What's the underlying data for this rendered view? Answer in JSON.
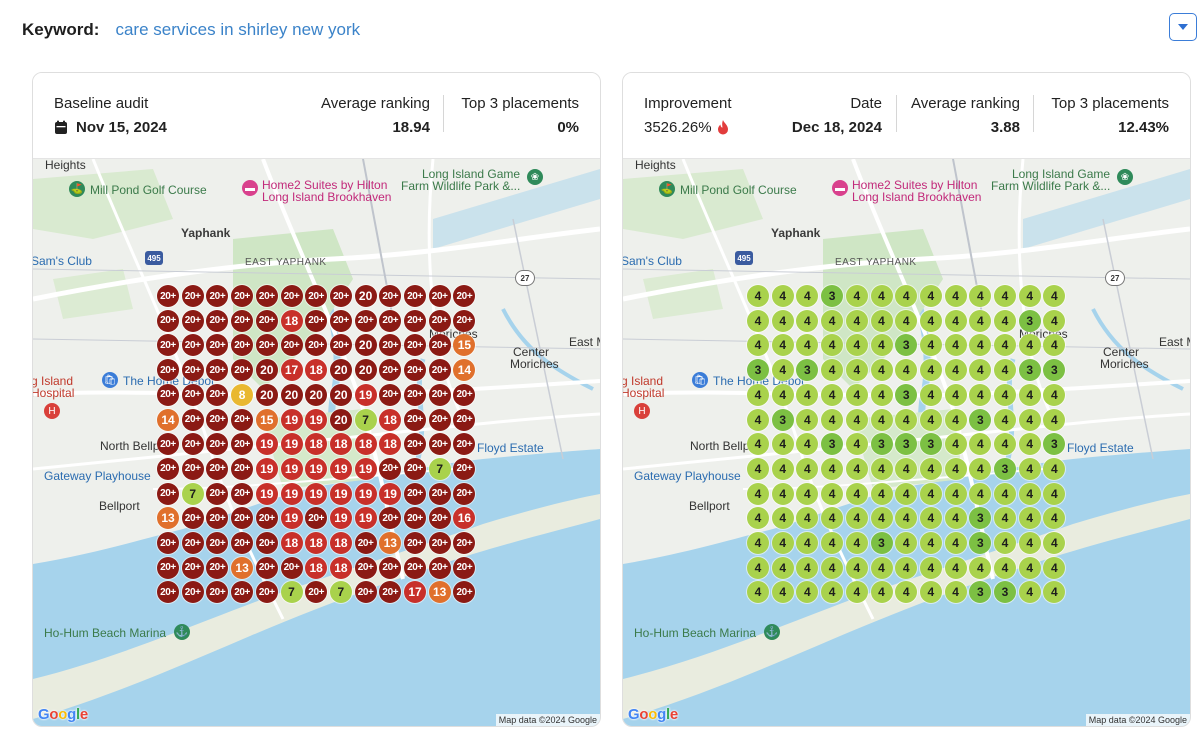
{
  "keyword": {
    "label": "Keyword:",
    "value": "care services in shirley new york"
  },
  "dropdown_icon": "chevron-down-icon",
  "colors": {
    "link": "#3b83c9",
    "rank_20_plus": "#8b1a14",
    "rank_16_19": "#c8302a",
    "rank_11_15": "#e0702c",
    "rank_8_10": "#e9b830",
    "rank_4_7": "#a9d24c",
    "rank_1_3": "#7cc043",
    "improvement_icon": "#e23c3c"
  },
  "baseline": {
    "title": "Baseline audit",
    "date": "Nov 15, 2024",
    "date_icon": "calendar-icon",
    "avg_label": "Average ranking",
    "avg_value": "18.94",
    "top3_label": "Top 3 placements",
    "top3_value": "0%"
  },
  "current": {
    "improvement_label": "Improvement",
    "improvement_value": "3526.26%",
    "improvement_icon": "flame-icon",
    "date_label": "Date",
    "date_value": "Dec 18, 2024",
    "avg_label": "Average ranking",
    "avg_value": "3.88",
    "top3_label": "Top 3 placements",
    "top3_value": "12.43%"
  },
  "map_labels": {
    "heights": "Heights",
    "mill_pond": "Mill Pond Golf Course",
    "home2_line1": "Home2 Suites by Hilton",
    "home2_line2": "Long Island Brookhaven",
    "game_farm_line1": "Long Island Game",
    "game_farm_line2": "Farm Wildlife Park &...",
    "yaphank": "Yaphank",
    "sams_club": "Sam's Club",
    "east_yaphank": "EAST YAPHANK",
    "route_495": "495",
    "route_27": "27",
    "moriches": "Moriches",
    "east_m": "East M",
    "center_moriches_1": "Center",
    "center_moriches_2": "Moriches",
    "li_hospital_1": "g Island",
    "li_hospital_2": "Hospital",
    "home_depot": "The Home Depot",
    "north_bellport": "North Bellp",
    "floyd_estate": "Floyd Estate",
    "gateway": "Gateway Playhouse",
    "bellport": "Bellport",
    "ho_hum": "Ho-Hum Beach Marina",
    "map_data": "Map data ©2024 Google",
    "google": "Google"
  },
  "baseline_grid": [
    [
      "20+",
      "20+",
      "20+",
      "20+",
      "20+",
      "20+",
      "20+",
      "20+",
      "20",
      "20+",
      "20+",
      "20+",
      "20+"
    ],
    [
      "20+",
      "20+",
      "20+",
      "20+",
      "20+",
      "18",
      "20+",
      "20+",
      "20+",
      "20+",
      "20+",
      "20+",
      "20+"
    ],
    [
      "20+",
      "20+",
      "20+",
      "20+",
      "20+",
      "20+",
      "20+",
      "20+",
      "20",
      "20+",
      "20+",
      "20+",
      "15"
    ],
    [
      "20+",
      "20+",
      "20+",
      "20+",
      "20",
      "17",
      "18",
      "20",
      "20",
      "20+",
      "20+",
      "20+",
      "14"
    ],
    [
      "20+",
      "20+",
      "20+",
      "8",
      "20",
      "20",
      "20",
      "20",
      "19",
      "20+",
      "20+",
      "20+",
      "20+"
    ],
    [
      "14",
      "20+",
      "20+",
      "20+",
      "15",
      "19",
      "19",
      "20",
      "7",
      "18",
      "20+",
      "20+",
      "20+"
    ],
    [
      "20+",
      "20+",
      "20+",
      "20+",
      "19",
      "19",
      "18",
      "18",
      "18",
      "18",
      "20+",
      "20+",
      "20+"
    ],
    [
      "20+",
      "20+",
      "20+",
      "20+",
      "19",
      "19",
      "19",
      "19",
      "19",
      "20+",
      "20+",
      "7",
      "20+"
    ],
    [
      "20+",
      "7",
      "20+",
      "20+",
      "19",
      "19",
      "19",
      "19",
      "19",
      "19",
      "20+",
      "20+",
      "20+"
    ],
    [
      "13",
      "20+",
      "20+",
      "20+",
      "20+",
      "19",
      "20+",
      "19",
      "19",
      "20+",
      "20+",
      "20+",
      "16"
    ],
    [
      "20+",
      "20+",
      "20+",
      "20+",
      "20+",
      "18",
      "18",
      "18",
      "20+",
      "13",
      "20+",
      "20+",
      "20+"
    ],
    [
      "20+",
      "20+",
      "20+",
      "13",
      "20+",
      "20+",
      "18",
      "18",
      "20+",
      "20+",
      "20+",
      "20+",
      "20+"
    ],
    [
      "20+",
      "20+",
      "20+",
      "20+",
      "20+",
      "7",
      "20+",
      "7",
      "20+",
      "20+",
      "17",
      "13",
      "20+"
    ]
  ],
  "current_grid": [
    [
      "4",
      "4",
      "4",
      "3",
      "4",
      "4",
      "4",
      "4",
      "4",
      "4",
      "4",
      "4",
      "4"
    ],
    [
      "4",
      "4",
      "4",
      "4",
      "4",
      "4",
      "4",
      "4",
      "4",
      "4",
      "4",
      "3",
      "4"
    ],
    [
      "4",
      "4",
      "4",
      "4",
      "4",
      "4",
      "3",
      "4",
      "4",
      "4",
      "4",
      "4",
      "4"
    ],
    [
      "3",
      "4",
      "3",
      "4",
      "4",
      "4",
      "4",
      "4",
      "4",
      "4",
      "4",
      "3",
      "3"
    ],
    [
      "4",
      "4",
      "4",
      "4",
      "4",
      "4",
      "3",
      "4",
      "4",
      "4",
      "4",
      "4",
      "4"
    ],
    [
      "4",
      "3",
      "4",
      "4",
      "4",
      "4",
      "4",
      "4",
      "4",
      "3",
      "4",
      "4",
      "4"
    ],
    [
      "4",
      "4",
      "4",
      "3",
      "4",
      "3",
      "3",
      "3",
      "4",
      "4",
      "4",
      "4",
      "3"
    ],
    [
      "4",
      "4",
      "4",
      "4",
      "4",
      "4",
      "4",
      "4",
      "4",
      "4",
      "3",
      "4",
      "4"
    ],
    [
      "4",
      "4",
      "4",
      "4",
      "4",
      "4",
      "4",
      "4",
      "4",
      "4",
      "4",
      "4",
      "4"
    ],
    [
      "4",
      "4",
      "4",
      "4",
      "4",
      "4",
      "4",
      "4",
      "4",
      "3",
      "4",
      "4",
      "4"
    ],
    [
      "4",
      "4",
      "4",
      "4",
      "4",
      "3",
      "4",
      "4",
      "4",
      "3",
      "4",
      "4",
      "4"
    ],
    [
      "4",
      "4",
      "4",
      "4",
      "4",
      "4",
      "4",
      "4",
      "4",
      "4",
      "4",
      "4",
      "4"
    ],
    [
      "4",
      "4",
      "4",
      "4",
      "4",
      "4",
      "4",
      "4",
      "4",
      "3",
      "3",
      "4",
      "4"
    ]
  ]
}
